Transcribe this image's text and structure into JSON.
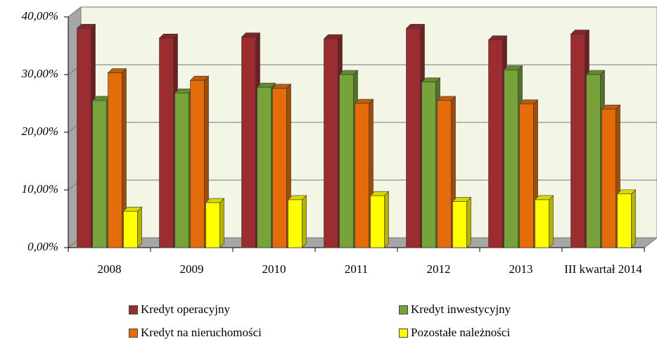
{
  "chart_data": {
    "type": "bar3d",
    "categories": [
      "2008",
      "2009",
      "2010",
      "2011",
      "2012",
      "2013",
      "III kwartał 2014"
    ],
    "series": [
      {
        "name": "Kredyt operacyjny",
        "color": "#9b2d30",
        "values": [
          38.0,
          36.3,
          36.5,
          36.2,
          38.0,
          36.0,
          37.0
        ]
      },
      {
        "name": "Kredyt inwestycyjny",
        "color": "#77a33a",
        "values": [
          25.5,
          26.8,
          27.8,
          30.0,
          28.7,
          30.8,
          30.0
        ]
      },
      {
        "name": "Kredyt na nieruchomości",
        "color": "#e46c0a",
        "values": [
          30.3,
          29.0,
          27.6,
          25.0,
          25.5,
          24.9,
          24.0
        ]
      },
      {
        "name": "Pozostałe należności",
        "color": "#ffff00",
        "values": [
          6.3,
          7.8,
          8.3,
          9.0,
          8.0,
          8.3,
          9.3
        ]
      }
    ],
    "ylim": [
      0,
      40
    ],
    "yticks": [
      {
        "value": 0,
        "label": "0,00%"
      },
      {
        "value": 10,
        "label": "10,00%"
      },
      {
        "value": 20,
        "label": "20,00%"
      },
      {
        "value": 30,
        "label": "30,00%"
      },
      {
        "value": 40,
        "label": "40,00%"
      }
    ],
    "grid": true,
    "legend": "bottom"
  }
}
